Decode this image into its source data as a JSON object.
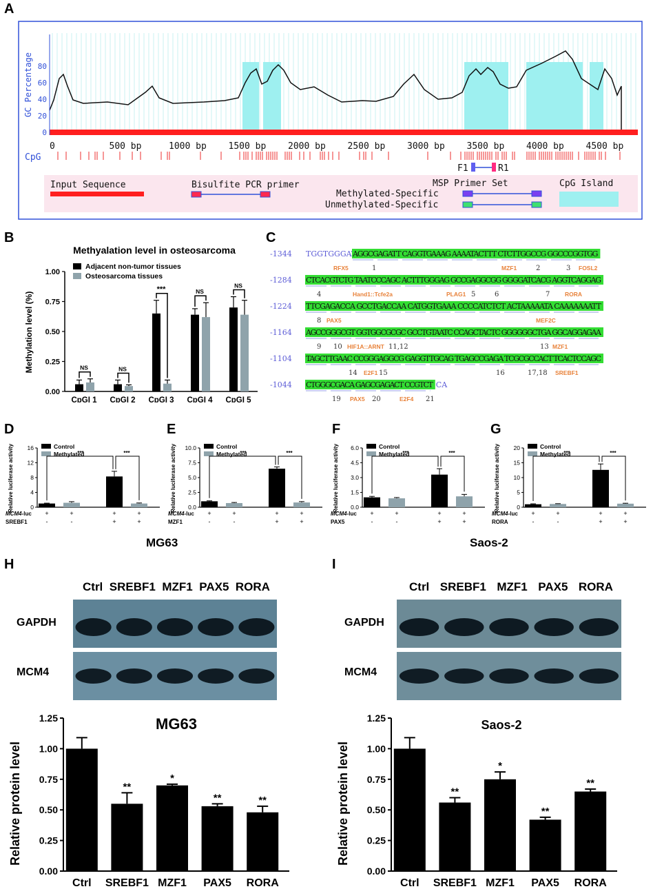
{
  "colors": {
    "cpg_island": "#9ef0f0",
    "input_seq": "#ff1f1f",
    "bar_black": "#000000",
    "bar_grey": "#8fa3ab",
    "seq_highlight": "#33dd33",
    "seq_number": "#5b5bd6",
    "tf_label": "#e8823a",
    "frame": "#3050d8",
    "legend_bg": "#fbe6ee"
  },
  "panels": {
    "A": "A",
    "B": "B",
    "C": "C",
    "D": "D",
    "E": "E",
    "F": "F",
    "G": "G",
    "H": "H",
    "I": "I"
  },
  "panel_a": {
    "ylabel": "GC Percentage",
    "yticks": [
      "0",
      "20",
      "40",
      "60",
      "80"
    ],
    "xticks": [
      "0",
      "500 bp",
      "1000 bp",
      "1500 bp",
      "2000 bp",
      "2500 bp",
      "3000 bp",
      "3500 bp",
      "4000 bp",
      "4500 bp"
    ],
    "cpg_label": "CpG",
    "primer_f": "F1",
    "primer_r": "R1",
    "legend": {
      "input_sequence": "Input Sequence",
      "bisulfite": "Bisulfite PCR primer",
      "msp": "MSP Primer Set",
      "methylated": "Methylated-Specific",
      "unmethylated": "Unmethylated-Specific",
      "cpg_island": "CpG Island"
    }
  },
  "panel_c": {
    "rows": [
      {
        "num": "-1344",
        "pre": "TGGTGGGATT",
        "seq": "AGGCGAGATT CAGGTGAAAG AAAATACTTT CTCTTGGCCG GGCCCGGTGG",
        "under": [
          "4",
          "",
          "4",
          "",
          "2",
          "3",
          "",
          "",
          "",
          "",
          "",
          "",
          "",
          "",
          "",
          "",
          "",
          "",
          "",
          "",
          "",
          "",
          "",
          "",
          "",
          "",
          "",
          "",
          "",
          "",
          "",
          "",
          "",
          "",
          "",
          "",
          "",
          "",
          "",
          "",
          "",
          "",
          "",
          "",
          "",
          "",
          "",
          "",
          "",
          "",
          "",
          "",
          "",
          "",
          "",
          "",
          "",
          "",
          "",
          "",
          "",
          "",
          "",
          "",
          "",
          "",
          "",
          "",
          "",
          "",
          "",
          "",
          "",
          "",
          "",
          "",
          "",
          "",
          "",
          "",
          "",
          "",
          "",
          "",
          "",
          "",
          "",
          "",
          "",
          "",
          "",
          "",
          "",
          ""
        ],
        "annot": "RFX5   1                            MZF1   2      3  FOSL2"
      },
      {
        "num": "-1284",
        "pre": "",
        "seq": "CTCACGTCTG TAATCCCAGC ACTTTGGGAG GCCGAGGCGG GGGGATCACG AGGTCAGGAG",
        "annot": ""
      },
      {
        "num": "-1224",
        "pre": "",
        "seq": "TTCGAGACCA GCCTGACCAA CATGGTGAAA CCCCATCTCT ACTAAAAATA CAAAAAAATT",
        "annot": ""
      },
      {
        "num": "-1164",
        "pre": "",
        "seq": "AGCCGGGCGT GGTGGCGCGC GCCTGTAATC CCAGCTACTC GGGGGGCTGA GGCAGGAGAA",
        "annot": ""
      },
      {
        "num": "-1104",
        "pre": "",
        "seq": "TAGCTTGAAC CCGGGAGGCG GAGGTTGCAG TGAGCCGAGA TCGCGCCACT TCACTCCAGC",
        "annot": ""
      },
      {
        "num": "-1044",
        "pre": "",
        "seq": "CTGGGCGACA GAGCGAGACT CCGTCT",
        "post": "CA",
        "annot": ""
      }
    ],
    "marks": [
      {
        "t": "RFX5",
        "kind": "tf"
      },
      {
        "t": "1",
        "kind": "n"
      },
      {
        "t": "MZF1",
        "kind": "tf"
      },
      {
        "t": "2",
        "kind": "n"
      },
      {
        "t": "3",
        "kind": "n"
      },
      {
        "t": "FOSL2",
        "kind": "tf"
      },
      {
        "t": "4",
        "kind": "n"
      },
      {
        "t": "Hand1::Tcfe2a",
        "kind": "tf"
      },
      {
        "t": "PLAG1",
        "kind": "tf"
      },
      {
        "t": "5",
        "kind": "n"
      },
      {
        "t": "6",
        "kind": "n"
      },
      {
        "t": "7",
        "kind": "n"
      },
      {
        "t": "RORA",
        "kind": "tf"
      },
      {
        "t": "8",
        "kind": "n"
      },
      {
        "t": "PAX5",
        "kind": "tf"
      },
      {
        "t": "MEF2C",
        "kind": "tf"
      },
      {
        "t": "9",
        "kind": "n"
      },
      {
        "t": "10",
        "kind": "n"
      },
      {
        "t": "HIF1A::ARNT",
        "kind": "tf"
      },
      {
        "t": "11,12",
        "kind": "n"
      },
      {
        "t": "13",
        "kind": "n"
      },
      {
        "t": "MZF1",
        "kind": "tf"
      },
      {
        "t": "14",
        "kind": "n"
      },
      {
        "t": "E2F1",
        "kind": "tf"
      },
      {
        "t": "15",
        "kind": "n"
      },
      {
        "t": "16",
        "kind": "n"
      },
      {
        "t": "17,18",
        "kind": "n"
      },
      {
        "t": "SREBF1",
        "kind": "tf"
      },
      {
        "t": "19",
        "kind": "n"
      },
      {
        "t": "PAX5",
        "kind": "tf"
      },
      {
        "t": "20",
        "kind": "n"
      },
      {
        "t": "E2F4",
        "kind": "tf"
      },
      {
        "t": "21",
        "kind": "n"
      }
    ]
  },
  "cell_lines": {
    "left": "MG63",
    "right": "Saos-2"
  },
  "blot": {
    "lanes": [
      "Ctrl",
      "SREBF1",
      "MZF1",
      "PAX5",
      "RORA"
    ],
    "gapdh": "GAPDH",
    "mcm4": "MCM4"
  },
  "luc_common": {
    "legend": [
      "Control",
      "Methylated"
    ],
    "row1_label": "MCM4-luc",
    "row1_label_italic": "MCM4",
    "row1_label_suffix": "-luc",
    "row1_signs": [
      "+",
      "+",
      "+",
      "+"
    ],
    "row2_signs": [
      "-",
      "-",
      "+",
      "+"
    ],
    "sig": "***"
  },
  "chart_data": [
    {
      "id": "B",
      "type": "bar",
      "title": "Methyalation level in osteosarcoma",
      "ylabel": "Methylation level (%)",
      "ylim": [
        0,
        1.0
      ],
      "yticks": [
        "0.00",
        "0.25",
        "0.50",
        "0.75",
        "1.00"
      ],
      "categories": [
        "CpGI 1",
        "CpGI 2",
        "CpGI 3",
        "CpGI 4",
        "CpGI 5"
      ],
      "series": [
        {
          "name": "Adjacent non-tumor tissues",
          "values": [
            0.06,
            0.06,
            0.65,
            0.64,
            0.7
          ],
          "err": [
            0.035,
            0.035,
            0.11,
            0.05,
            0.09
          ]
        },
        {
          "name": "Osteosarcoma tissues",
          "values": [
            0.075,
            0.045,
            0.065,
            0.62,
            0.64
          ],
          "err": [
            0.03,
            0.01,
            0.03,
            0.12,
            0.12
          ]
        }
      ],
      "significance": [
        "NS",
        "NS",
        "***",
        "NS",
        "NS"
      ],
      "legend": "top-left"
    },
    {
      "id": "D",
      "type": "bar",
      "ylabel": "Relative luciferase activity",
      "ylim": [
        0,
        16
      ],
      "yticks": [
        "0",
        "4",
        "8",
        "12",
        "16"
      ],
      "row2_label": "SREBF1",
      "series": [
        {
          "name": "Control",
          "values": [
            1.0,
            8.3
          ],
          "err": [
            0.1,
            1.4
          ]
        },
        {
          "name": "Methylated",
          "values": [
            1.2,
            1.0
          ],
          "err": [
            0.3,
            0.15
          ]
        }
      ]
    },
    {
      "id": "E",
      "type": "bar",
      "ylabel": "Relative luciferase activity",
      "ylim": [
        0,
        10
      ],
      "yticks": [
        "0.0",
        "2.5",
        "5.0",
        "7.5",
        "10.0"
      ],
      "row2_label": "MZF1",
      "series": [
        {
          "name": "Control",
          "values": [
            1.0,
            6.5
          ],
          "err": [
            0.08,
            0.3
          ]
        },
        {
          "name": "Methylated",
          "values": [
            0.7,
            0.8
          ],
          "err": [
            0.1,
            0.15
          ]
        }
      ]
    },
    {
      "id": "F",
      "type": "bar",
      "ylabel": "Relative luciferase activity",
      "ylim": [
        0,
        6
      ],
      "yticks": [
        "0.0",
        "1.5",
        "3.0",
        "4.5",
        "6.0"
      ],
      "row2_label": "PAX5",
      "series": [
        {
          "name": "Control",
          "values": [
            1.0,
            3.3
          ],
          "err": [
            0.1,
            0.6
          ]
        },
        {
          "name": "Methylated",
          "values": [
            0.9,
            1.1
          ],
          "err": [
            0.08,
            0.2
          ]
        }
      ]
    },
    {
      "id": "G",
      "type": "bar",
      "ylabel": "Relative luciferase activity",
      "ylim": [
        0,
        20
      ],
      "yticks": [
        "0",
        "5",
        "10",
        "15",
        "20"
      ],
      "row2_label": "RORA",
      "series": [
        {
          "name": "Control",
          "values": [
            1.0,
            12.6
          ],
          "err": [
            0.15,
            2.0
          ]
        },
        {
          "name": "Methylated",
          "values": [
            1.1,
            1.2
          ],
          "err": [
            0.1,
            0.15
          ]
        }
      ]
    },
    {
      "id": "H",
      "type": "bar",
      "title": "MG63",
      "ylabel": "Relative protein level",
      "ylim": [
        0,
        1.25
      ],
      "yticks": [
        "0.00",
        "0.25",
        "0.50",
        "0.75",
        "1.00",
        "1.25"
      ],
      "categories": [
        "Ctrl",
        "SREBF1",
        "MZF1",
        "PAX5",
        "RORA"
      ],
      "values": [
        1.0,
        0.55,
        0.7,
        0.53,
        0.48
      ],
      "err": [
        0.09,
        0.09,
        0.01,
        0.02,
        0.05
      ],
      "significance": [
        "",
        "**",
        "*",
        "**",
        "**"
      ]
    },
    {
      "id": "I",
      "type": "bar",
      "title": "Saos-2",
      "ylabel": "Relative protein level",
      "ylim": [
        0,
        1.25
      ],
      "yticks": [
        "0.00",
        "0.25",
        "0.50",
        "0.75",
        "1.00",
        "1.25"
      ],
      "categories": [
        "Ctrl",
        "SREBF1",
        "MZF1",
        "PAX5",
        "RORA"
      ],
      "values": [
        1.0,
        0.56,
        0.75,
        0.42,
        0.65
      ],
      "err": [
        0.09,
        0.04,
        0.06,
        0.02,
        0.02
      ],
      "significance": [
        "",
        "**",
        "*",
        "**",
        "**"
      ]
    }
  ]
}
